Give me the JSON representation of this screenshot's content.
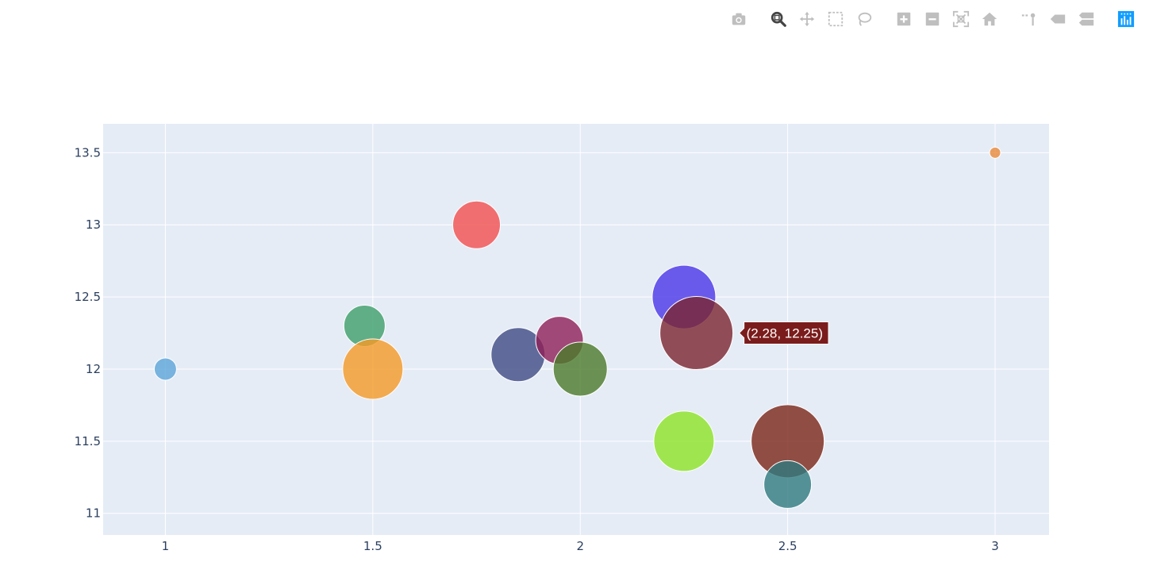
{
  "modebar": {
    "buttons": [
      {
        "name": "camera-icon",
        "group": 0,
        "active": false
      },
      {
        "name": "zoom-icon",
        "group": 1,
        "active": true
      },
      {
        "name": "pan-icon",
        "group": 1,
        "active": false
      },
      {
        "name": "box-select-icon",
        "group": 1,
        "active": false
      },
      {
        "name": "lasso-select-icon",
        "group": 1,
        "active": false
      },
      {
        "name": "zoom-in-icon",
        "group": 2,
        "active": false
      },
      {
        "name": "zoom-out-icon",
        "group": 2,
        "active": false
      },
      {
        "name": "autoscale-icon",
        "group": 2,
        "active": false
      },
      {
        "name": "reset-axes-icon",
        "group": 2,
        "active": false
      },
      {
        "name": "spike-lines-icon",
        "group": 3,
        "active": false
      },
      {
        "name": "hover-closest-icon",
        "group": 3,
        "active": false
      },
      {
        "name": "hover-compare-icon",
        "group": 3,
        "active": false
      },
      {
        "name": "plotly-logo-icon",
        "group": 4,
        "active": false
      }
    ],
    "icon_color": "#bfbfbf",
    "active_color": "#444444",
    "logo_color": "#119dff"
  },
  "chart_data": {
    "type": "scatter",
    "mode": "markers",
    "xlim": [
      0.85,
      3.13
    ],
    "ylim": [
      10.85,
      13.7
    ],
    "xticks": [
      1,
      1.5,
      2,
      2.5,
      3
    ],
    "xtick_labels": [
      "1",
      "1.5",
      "2",
      "2.5",
      "3"
    ],
    "yticks": [
      11,
      11.5,
      12,
      12.5,
      13,
      13.5
    ],
    "ytick_labels": [
      "11",
      "11.5",
      "12",
      "12.5",
      "13",
      "13.5"
    ],
    "grid": true,
    "plot_bgcolor": "#e5ecf6",
    "marker_opacity": 0.8,
    "points": [
      {
        "x": 1.0,
        "y": 12.0,
        "size": 14,
        "color": "#5da5da"
      },
      {
        "x": 1.48,
        "y": 12.3,
        "size": 26,
        "color": "#3d9f6a"
      },
      {
        "x": 1.5,
        "y": 12.0,
        "size": 38,
        "color": "#f59a27"
      },
      {
        "x": 1.75,
        "y": 13.0,
        "size": 30,
        "color": "#f34f4f"
      },
      {
        "x": 1.85,
        "y": 12.1,
        "size": 34,
        "color": "#3f4b84"
      },
      {
        "x": 1.95,
        "y": 12.2,
        "size": 30,
        "color": "#8f1f57"
      },
      {
        "x": 2.0,
        "y": 12.0,
        "size": 34,
        "color": "#4b7b2a"
      },
      {
        "x": 2.25,
        "y": 12.5,
        "size": 40,
        "color": "#4a36e8"
      },
      {
        "x": 2.28,
        "y": 12.25,
        "size": 46,
        "color": "#7b2430"
      },
      {
        "x": 2.25,
        "y": 11.5,
        "size": 38,
        "color": "#8de327"
      },
      {
        "x": 2.5,
        "y": 11.5,
        "size": 46,
        "color": "#7a2518"
      },
      {
        "x": 2.5,
        "y": 11.2,
        "size": 30,
        "color": "#2f7b80"
      },
      {
        "x": 3.0,
        "y": 13.5,
        "size": 7,
        "color": "#e88a3a"
      }
    ],
    "hover": {
      "x": 2.28,
      "y": 12.25,
      "text": "(2.28, 12.25)",
      "bgcolor": "#7b1c1c"
    }
  }
}
